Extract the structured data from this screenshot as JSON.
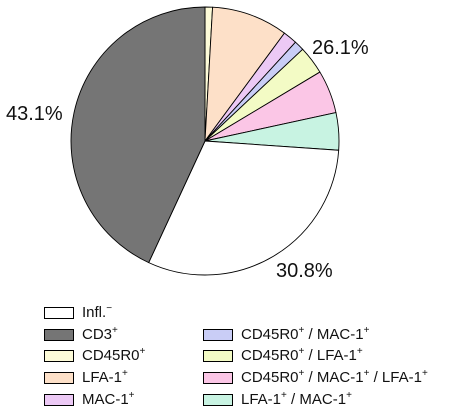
{
  "chart_data": {
    "type": "pie",
    "start_angle_deg": 0,
    "direction": "clockwise",
    "slices": [
      {
        "label": "CD45R0",
        "sup": "+",
        "value": 0.9,
        "color": "#fdfbd8"
      },
      {
        "label": "LFA-1",
        "sup": "+",
        "value": 9.2,
        "color": "#fde0c8"
      },
      {
        "label": "MAC-1",
        "sup": "+",
        "value": 1.7,
        "color": "#ecc9f5"
      },
      {
        "label": "CD45R0",
        "sup": "+",
        "label2": " / MAC-1",
        "sup2": "+",
        "value": 1.2,
        "color": "#c9cdf6"
      },
      {
        "label": "CD45R0",
        "sup": "+",
        "label2": " / LFA-1",
        "sup2": "+",
        "value": 3.4,
        "color": "#f3fbc5"
      },
      {
        "label": "CD45R0",
        "sup": "+",
        "label2": " / MAC-1",
        "sup2": "+",
        "label3": " / LFA-1",
        "sup3": "+",
        "value": 5.2,
        "color": "#fbc6e6"
      },
      {
        "label": "LFA-1",
        "sup": "+",
        "label2": " / MAC-1",
        "sup2": "+",
        "value": 4.5,
        "color": "#c8f3e2"
      },
      {
        "label": "Infl.",
        "sup": "−",
        "value": 30.8,
        "color": "#ffffff"
      },
      {
        "label": "CD3",
        "sup": "+",
        "value": 43.1,
        "color": "#757575"
      }
    ],
    "annotations": [
      {
        "text": "26.1%"
      },
      {
        "text": "30.8%"
      },
      {
        "text": "43.1%"
      }
    ],
    "legend_order": [
      7,
      8,
      0,
      1,
      2,
      3,
      4,
      5,
      6
    ],
    "legend_placement": "bottom"
  }
}
